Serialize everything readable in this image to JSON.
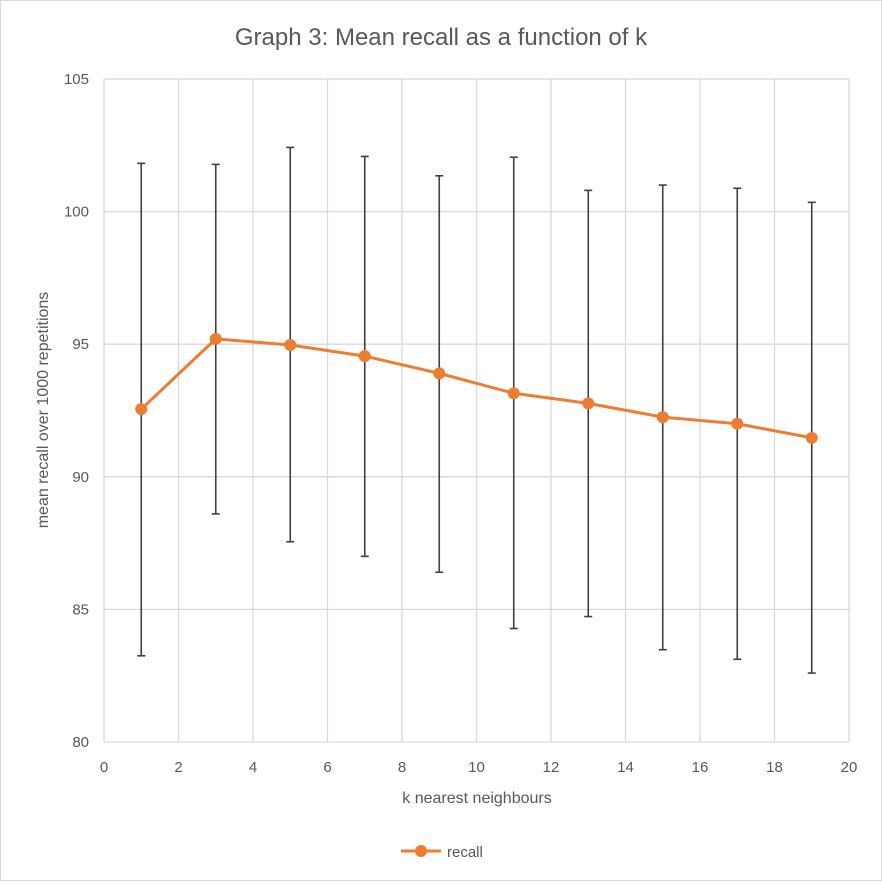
{
  "chart_data": {
    "type": "line",
    "title": "Graph 3: Mean recall as a function of k",
    "xlabel": "k nearest neighbours",
    "ylabel": "mean recall over 1000 repetitions",
    "xlim": [
      0,
      20
    ],
    "ylim": [
      80,
      105
    ],
    "x_ticks": [
      0,
      2,
      4,
      6,
      8,
      10,
      12,
      14,
      16,
      18,
      20
    ],
    "y_ticks": [
      80,
      85,
      90,
      95,
      100,
      105
    ],
    "grid": true,
    "legend_position": "bottom",
    "series": [
      {
        "name": "recall",
        "color": "#ed7d31",
        "marker": "circle",
        "x": [
          1,
          3,
          5,
          7,
          9,
          11,
          13,
          15,
          17,
          19
        ],
        "y": [
          92.55,
          95.2,
          94.97,
          94.55,
          93.9,
          93.15,
          92.77,
          92.25,
          92.0,
          91.47
        ],
        "error_low": [
          83.25,
          88.6,
          87.55,
          87.0,
          86.4,
          84.28,
          84.73,
          83.48,
          83.12,
          82.6
        ],
        "error_high": [
          101.82,
          101.78,
          102.42,
          102.08,
          101.35,
          102.05,
          100.8,
          101.0,
          100.88,
          100.35
        ]
      }
    ]
  }
}
